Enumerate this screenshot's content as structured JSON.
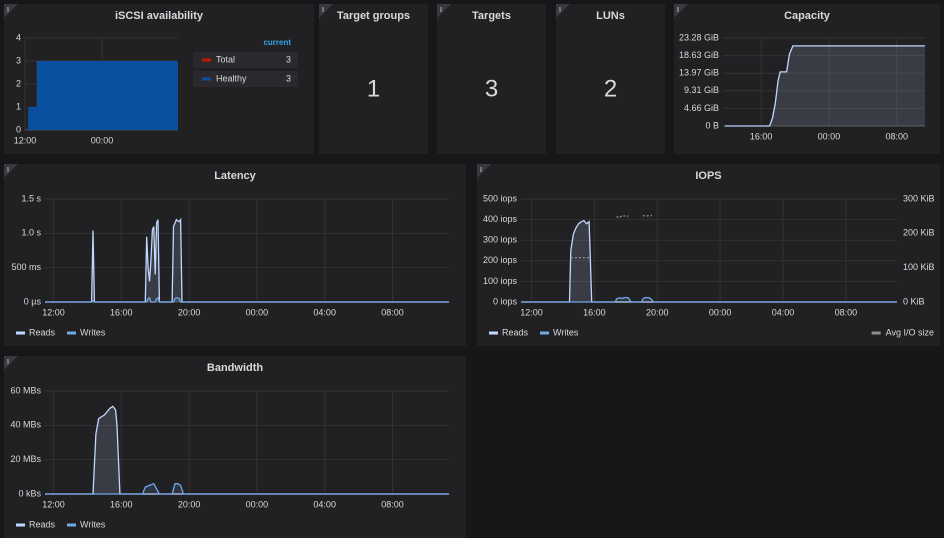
{
  "stats": [
    {
      "title": "Target groups",
      "value": 1
    },
    {
      "title": "Targets",
      "value": 3
    },
    {
      "title": "LUNs",
      "value": 2
    }
  ],
  "chart_data": [
    {
      "type": "step",
      "title": "iSCSI availability",
      "x": [
        "12:30",
        "13:50"
      ],
      "xlim": [
        "12:00",
        "11:50"
      ],
      "xticks": [
        "12:00",
        "00:00"
      ],
      "ylim": [
        0,
        4
      ],
      "yticks": [
        0,
        1,
        2,
        3,
        4
      ],
      "grid": true,
      "legend": "table",
      "legend_header": "current",
      "series": [
        {
          "name": "Total",
          "color": "#bf1b00",
          "current": 3,
          "values": [
            1,
            3
          ]
        },
        {
          "name": "Healthy",
          "color": "#0a50a1",
          "current": 3,
          "values": [
            1,
            3
          ]
        }
      ]
    },
    {
      "type": "area",
      "title": "Capacity",
      "x": [
        "11:45",
        "17:00",
        "17:20",
        "17:40",
        "18:00",
        "18:15",
        "19:00",
        "19:20",
        "19:45",
        "11:20"
      ],
      "xlim": [
        "11:30",
        "11:20"
      ],
      "xticks": [
        "16:00",
        "00:00",
        "08:00"
      ],
      "ylim": [
        0,
        23.28
      ],
      "yticks": [
        {
          "value": 0,
          "label": "0 B"
        },
        {
          "value": 4.66,
          "label": "4.66 GiB"
        },
        {
          "value": 9.31,
          "label": "9.31 GiB"
        },
        {
          "value": 13.97,
          "label": "13.97 GiB"
        },
        {
          "value": 18.63,
          "label": "18.63 GiB"
        },
        {
          "value": 23.28,
          "label": "23.28 GiB"
        }
      ],
      "grid": true,
      "color": "#c0d8ff",
      "values": [
        0,
        0,
        2,
        6,
        12,
        14.3,
        14.3,
        19,
        21.2,
        21.2
      ]
    },
    {
      "type": "line",
      "title": "Latency",
      "fill": true,
      "x": [
        "11:30",
        "14:15",
        "14:20",
        "14:25",
        "17:25",
        "17:30",
        "17:35",
        "17:40",
        "17:45",
        "17:50",
        "17:55",
        "18:00",
        "18:05",
        "18:10",
        "18:15",
        "19:00",
        "19:05",
        "19:10",
        "19:15",
        "19:20",
        "19:25",
        "19:30",
        "19:35",
        "11:20"
      ],
      "xlim": [
        "11:30",
        "11:20"
      ],
      "xticks": [
        "12:00",
        "16:00",
        "20:00",
        "00:00",
        "04:00",
        "08:00"
      ],
      "ylim": [
        0,
        1.5
      ],
      "yticks": [
        {
          "value": 0,
          "label": "0 µs"
        },
        {
          "value": 0.5,
          "label": "500 ms"
        },
        {
          "value": 1,
          "label": "1.0 s"
        },
        {
          "value": 1.5,
          "label": "1.5 s"
        }
      ],
      "grid": true,
      "legend": "bottom",
      "series": [
        {
          "name": "Reads",
          "color": "#c0d8ff",
          "values": [
            0,
            0,
            1.04,
            0,
            0,
            0.95,
            0.5,
            0.3,
            0.6,
            1.05,
            1.1,
            0.4,
            1.15,
            1.2,
            0,
            0,
            1.1,
            1.15,
            1.2,
            1.18,
            1.17,
            1.2,
            0,
            0
          ]
        },
        {
          "name": "Writes",
          "color": "#73a8e8",
          "values": [
            0,
            0,
            0.02,
            0,
            0,
            0,
            0.05,
            0.06,
            0,
            0,
            0,
            0,
            0.05,
            0.06,
            0,
            0,
            0,
            0.05,
            0.06,
            0.06,
            0.05,
            0,
            0,
            0
          ]
        }
      ]
    },
    {
      "type": "line",
      "title": "IOPS",
      "fill": true,
      "x": [
        "11:20",
        "14:25",
        "14:30",
        "14:40",
        "14:50",
        "15:00",
        "15:10",
        "15:20",
        "15:30",
        "15:40",
        "15:45",
        "15:50",
        "17:20",
        "17:25",
        "17:35",
        "17:45",
        "18:00",
        "18:10",
        "18:15",
        "18:20",
        "19:00",
        "19:05",
        "19:15",
        "19:30",
        "19:40",
        "19:45",
        "11:15"
      ],
      "xlim": [
        "11:20",
        "11:15"
      ],
      "xticks": [
        "12:00",
        "16:00",
        "20:00",
        "00:00",
        "04:00",
        "08:00"
      ],
      "ylim": [
        0,
        500
      ],
      "yticks": [
        {
          "value": 0,
          "label": "0 iops"
        },
        {
          "value": 100,
          "label": "100 iops"
        },
        {
          "value": 200,
          "label": "200 iops"
        },
        {
          "value": 300,
          "label": "300 iops"
        },
        {
          "value": 400,
          "label": "400 iops"
        },
        {
          "value": 500,
          "label": "500 iops"
        }
      ],
      "y2lim": [
        0,
        300
      ],
      "y2ticks": [
        {
          "value": 0,
          "label": "0 KiB"
        },
        {
          "value": 100,
          "label": "100 KiB"
        },
        {
          "value": 200,
          "label": "200 KiB"
        },
        {
          "value": 300,
          "label": "300 KiB"
        }
      ],
      "grid": true,
      "legend": "bottom",
      "series": [
        {
          "name": "Reads",
          "color": "#c0d8ff",
          "values": [
            0,
            0,
            250,
            330,
            360,
            380,
            390,
            395,
            380,
            390,
            200,
            0,
            0,
            0,
            0,
            0,
            0,
            0,
            0,
            0,
            0,
            0,
            0,
            0,
            0,
            0,
            0
          ]
        },
        {
          "name": "Writes",
          "color": "#73a8e8",
          "values": [
            0,
            0,
            0,
            0,
            0,
            0,
            0,
            0,
            0,
            0,
            0,
            0,
            0,
            15,
            20,
            18,
            22,
            20,
            10,
            0,
            0,
            15,
            22,
            20,
            10,
            0,
            0
          ]
        },
        {
          "name": "Avg I/O size",
          "color": "#8e8e8e",
          "axis": "y2",
          "dash": true,
          "values": [
            null,
            null,
            129,
            129,
            129,
            129,
            129,
            129,
            129,
            129,
            129,
            null,
            null,
            249,
            245,
            252,
            250,
            250,
            null,
            null,
            null,
            252,
            250,
            252,
            252,
            null,
            null
          ]
        }
      ]
    },
    {
      "type": "line",
      "title": "Bandwidth",
      "fill": true,
      "x": [
        "11:30",
        "14:20",
        "14:30",
        "14:40",
        "15:00",
        "15:10",
        "15:20",
        "15:30",
        "15:40",
        "15:45",
        "15:55",
        "17:15",
        "17:25",
        "17:40",
        "17:55",
        "18:05",
        "18:15",
        "19:00",
        "19:10",
        "19:20",
        "19:30",
        "19:40",
        "11:20"
      ],
      "xlim": [
        "11:30",
        "11:20"
      ],
      "xticks": [
        "12:00",
        "16:00",
        "20:00",
        "00:00",
        "04:00",
        "08:00"
      ],
      "ylim": [
        0,
        60
      ],
      "yticks": [
        {
          "value": 0,
          "label": "0 kBs"
        },
        {
          "value": 20,
          "label": "20 MBs"
        },
        {
          "value": 40,
          "label": "40 MBs"
        },
        {
          "value": 60,
          "label": "60 MBs"
        }
      ],
      "grid": true,
      "legend": "bottom",
      "series": [
        {
          "name": "Reads",
          "color": "#c0d8ff",
          "values": [
            0,
            0,
            35,
            44,
            46,
            48,
            50,
            51,
            49,
            40,
            0,
            0,
            0,
            0,
            0,
            0,
            0,
            0,
            0,
            0,
            0,
            0,
            0
          ]
        },
        {
          "name": "Writes",
          "color": "#73a8e8",
          "values": [
            0,
            0,
            0,
            0,
            0,
            0,
            0,
            0,
            0,
            0,
            0,
            0,
            4,
            5,
            6,
            3,
            0,
            0,
            6,
            6,
            5,
            0,
            0
          ]
        }
      ]
    }
  ]
}
